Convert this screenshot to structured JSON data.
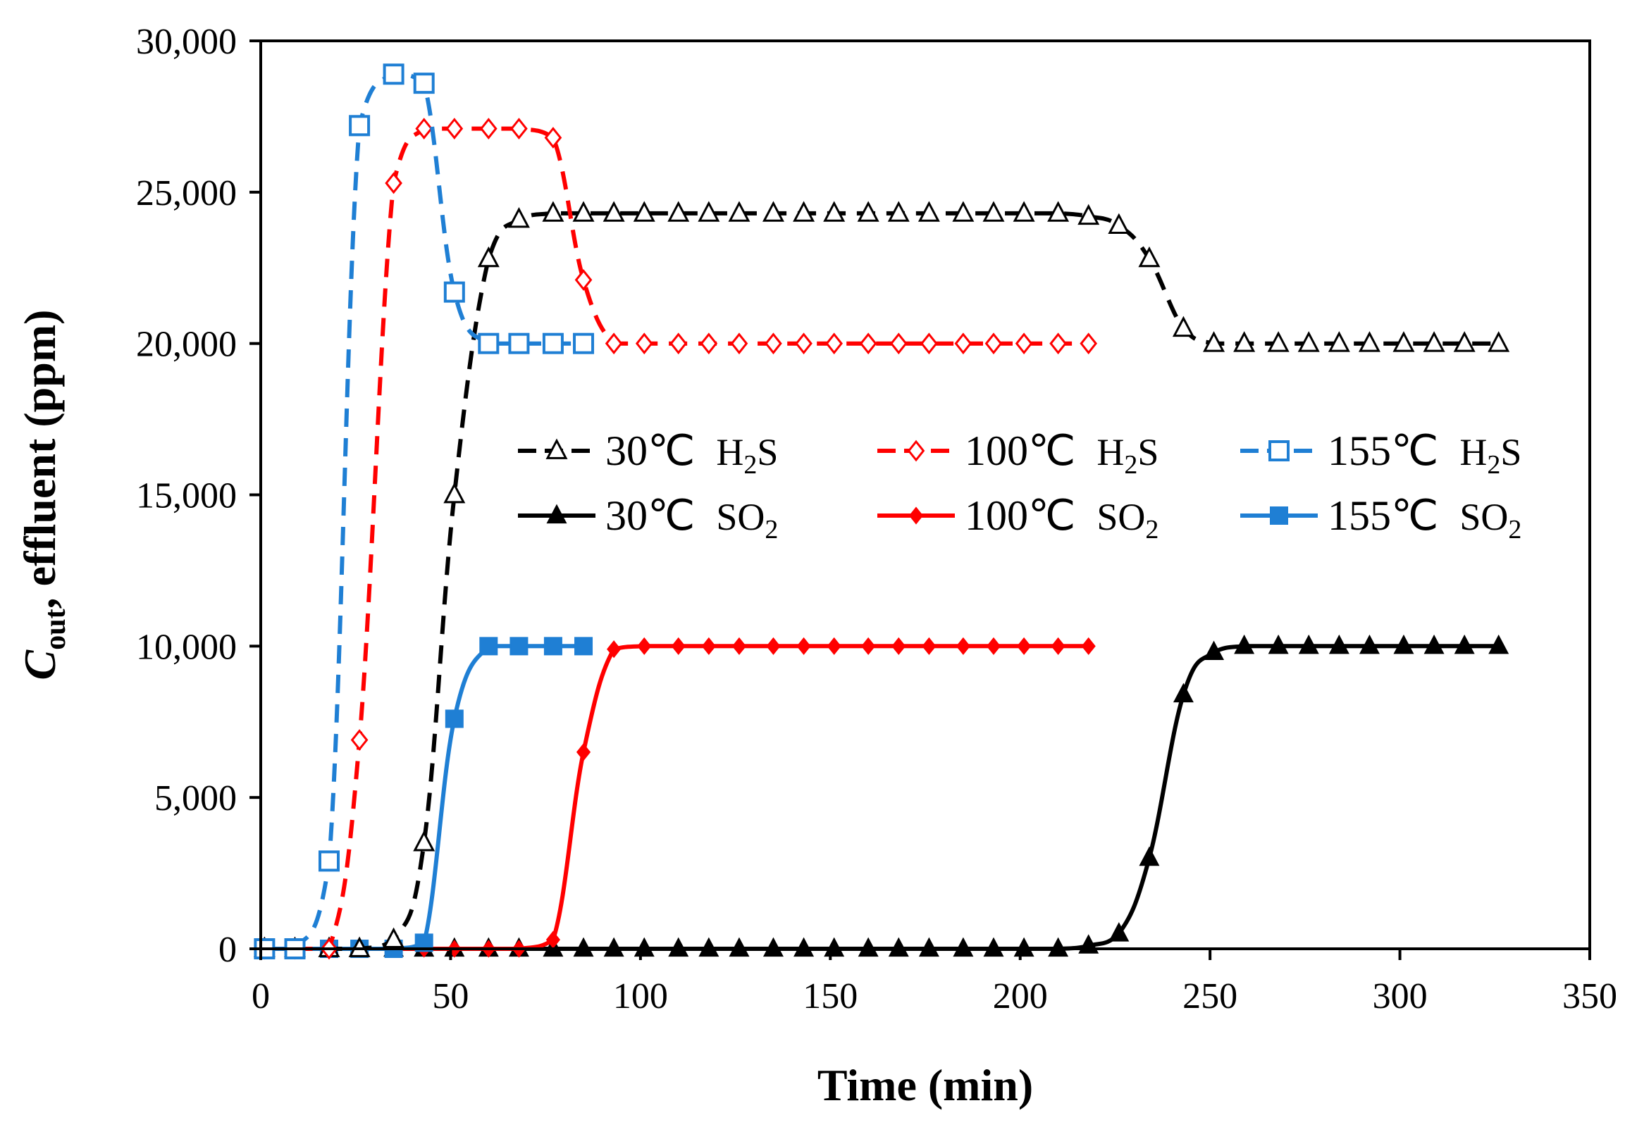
{
  "chart_data": {
    "type": "line",
    "title": "",
    "xlabel": "Time (min)",
    "ylabel": {
      "symbol": "C",
      "subscript": "out",
      "rest": ", effluent  (ppm)"
    },
    "xlim": [
      0,
      350
    ],
    "ylim": [
      0,
      30000
    ],
    "xticks": [
      0,
      50,
      100,
      150,
      200,
      250,
      300,
      350
    ],
    "xtick_labels": [
      "0",
      "50",
      "100",
      "150",
      "200",
      "250",
      "300",
      "350"
    ],
    "yticks": [
      0,
      5000,
      10000,
      15000,
      20000,
      25000,
      30000
    ],
    "ytick_labels": [
      "0",
      "5,000",
      "10,000",
      "15,000",
      "20,000",
      "25,000",
      "30,000"
    ],
    "grid": false,
    "legend_position": "center-right",
    "series": [
      {
        "name": "30℃  H2S",
        "label_temp": "30℃",
        "label_gas": "H",
        "label_sub": "2",
        "label_tail": "S",
        "color": "#000000",
        "dashed": true,
        "marker": "triangle",
        "filled": false,
        "x": [
          1,
          9,
          18,
          26,
          35,
          43,
          51,
          60,
          68,
          77,
          85,
          93,
          101,
          110,
          118,
          126,
          135,
          143,
          151,
          160,
          168,
          176,
          185,
          193,
          201,
          210,
          218,
          226,
          234,
          243,
          251,
          259,
          268,
          276,
          284,
          292,
          301,
          309,
          317,
          326
        ],
        "y": [
          0,
          0,
          0,
          0,
          300,
          3500,
          15000,
          22800,
          24100,
          24300,
          24300,
          24300,
          24300,
          24300,
          24300,
          24300,
          24300,
          24300,
          24300,
          24300,
          24300,
          24300,
          24300,
          24300,
          24300,
          24300,
          24200,
          23900,
          22800,
          20500,
          20000,
          20000,
          20000,
          20000,
          20000,
          20000,
          20000,
          20000,
          20000,
          20000
        ]
      },
      {
        "name": "100℃  H2S",
        "label_temp": "100℃",
        "label_gas": "H",
        "label_sub": "2",
        "label_tail": "S",
        "color": "#ff0000",
        "dashed": true,
        "marker": "diamond",
        "filled": false,
        "x": [
          1,
          9,
          18,
          26,
          35,
          43,
          51,
          60,
          68,
          77,
          85,
          93,
          101,
          110,
          118,
          126,
          135,
          143,
          151,
          160,
          168,
          176,
          185,
          193,
          201,
          210,
          218
        ],
        "y": [
          0,
          0,
          0,
          6900,
          25300,
          27100,
          27100,
          27100,
          27100,
          26800,
          22100,
          20000,
          20000,
          20000,
          20000,
          20000,
          20000,
          20000,
          20000,
          20000,
          20000,
          20000,
          20000,
          20000,
          20000,
          20000,
          20000
        ]
      },
      {
        "name": "155℃  H2S",
        "label_temp": "155℃",
        "label_gas": "H",
        "label_sub": "2",
        "label_tail": "S",
        "color": "#1f7fd4",
        "dashed": true,
        "marker": "square",
        "filled": false,
        "x": [
          1,
          9,
          18,
          26,
          35,
          43,
          51,
          60,
          68,
          77,
          85
        ],
        "y": [
          0,
          0,
          2900,
          27200,
          28900,
          28600,
          21700,
          20000,
          20000,
          20000,
          20000
        ]
      },
      {
        "name": "30℃  SO2",
        "label_temp": "30℃",
        "label_gas": "SO",
        "label_sub": "2",
        "label_tail": "",
        "color": "#000000",
        "dashed": false,
        "marker": "triangle",
        "filled": true,
        "x": [
          1,
          9,
          18,
          26,
          35,
          43,
          51,
          60,
          68,
          77,
          85,
          93,
          101,
          110,
          118,
          126,
          135,
          143,
          151,
          160,
          168,
          176,
          185,
          193,
          201,
          210,
          218,
          226,
          234,
          243,
          251,
          259,
          268,
          276,
          284,
          292,
          301,
          309,
          317,
          326
        ],
        "y": [
          0,
          0,
          0,
          0,
          0,
          0,
          0,
          0,
          0,
          0,
          0,
          0,
          0,
          0,
          0,
          0,
          0,
          0,
          0,
          0,
          0,
          0,
          0,
          0,
          0,
          0,
          100,
          500,
          3000,
          8400,
          9800,
          10000,
          10000,
          10000,
          10000,
          10000,
          10000,
          10000,
          10000,
          10000
        ]
      },
      {
        "name": "100℃  SO2",
        "label_temp": "100℃",
        "label_gas": "SO",
        "label_sub": "2",
        "label_tail": "",
        "color": "#ff0000",
        "dashed": false,
        "marker": "diamond",
        "filled": true,
        "x": [
          1,
          9,
          18,
          26,
          35,
          43,
          51,
          60,
          68,
          77,
          85,
          93,
          101,
          110,
          118,
          126,
          135,
          143,
          151,
          160,
          168,
          176,
          185,
          193,
          201,
          210,
          218
        ],
        "y": [
          0,
          0,
          0,
          0,
          0,
          0,
          0,
          0,
          0,
          300,
          6500,
          9900,
          10000,
          10000,
          10000,
          10000,
          10000,
          10000,
          10000,
          10000,
          10000,
          10000,
          10000,
          10000,
          10000,
          10000,
          10000
        ]
      },
      {
        "name": "155℃  SO2",
        "label_temp": "155℃",
        "label_gas": "SO",
        "label_sub": "2",
        "label_tail": "",
        "color": "#1f7fd4",
        "dashed": false,
        "marker": "square",
        "filled": true,
        "x": [
          1,
          9,
          18,
          26,
          35,
          43,
          51,
          60,
          68,
          77,
          85
        ],
        "y": [
          0,
          0,
          0,
          0,
          0,
          200,
          7600,
          10000,
          10000,
          10000,
          10000
        ]
      }
    ]
  }
}
